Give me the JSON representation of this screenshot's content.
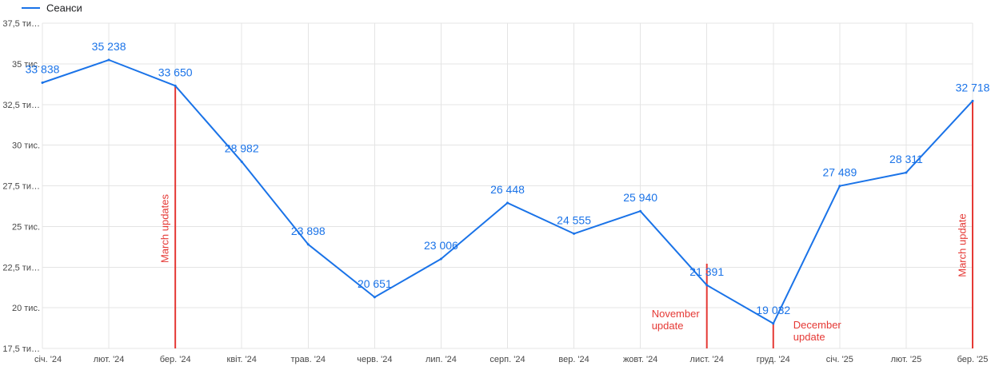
{
  "chart_data": {
    "type": "line",
    "categories": [
      "січ. '24",
      "лют. '24",
      "бер. '24",
      "квіт. '24",
      "трав. '24",
      "черв. '24",
      "лип. '24",
      "серп. '24",
      "вер. '24",
      "жовт. '24",
      "лист. '24",
      "груд. '24",
      "січ. '25",
      "лют. '25",
      "бер. '25"
    ],
    "series": [
      {
        "name": "Сеанси",
        "color": "#1a73e8",
        "values": [
          33838,
          35238,
          33650,
          28982,
          23898,
          20651,
          23006,
          26448,
          24555,
          25940,
          21391,
          19032,
          27489,
          28311,
          32718
        ],
        "data_labels": [
          "33 838",
          "35 238",
          "33 650",
          "28 982",
          "23 898",
          "20 651",
          "23 006",
          "26 448",
          "24 555",
          "25 940",
          "21 391",
          "19 032",
          "27 489",
          "28 311",
          "32 718"
        ]
      }
    ],
    "ylim": [
      17500,
      37500
    ],
    "y_ticks": [
      17500,
      20000,
      22500,
      25000,
      27500,
      30000,
      32500,
      35000,
      37500
    ],
    "y_tick_labels": [
      "17,5 ти…",
      "20 тис.",
      "22,5 ти…",
      "25 тис.",
      "27,5 ти…",
      "30 тис.",
      "32,5 ти…",
      "35 тис.",
      "37,5 ти…"
    ],
    "grid": true,
    "legend_position": "top-left",
    "annotations": [
      {
        "category": "бер. '24",
        "label": "March updates",
        "color": "#e53935"
      },
      {
        "category": "лист. '24",
        "label": "November update",
        "color": "#e53935"
      },
      {
        "category": "груд. '24",
        "label": "December update",
        "color": "#e53935"
      },
      {
        "category": "бер. '25",
        "label": "March update",
        "color": "#e53935"
      }
    ]
  }
}
